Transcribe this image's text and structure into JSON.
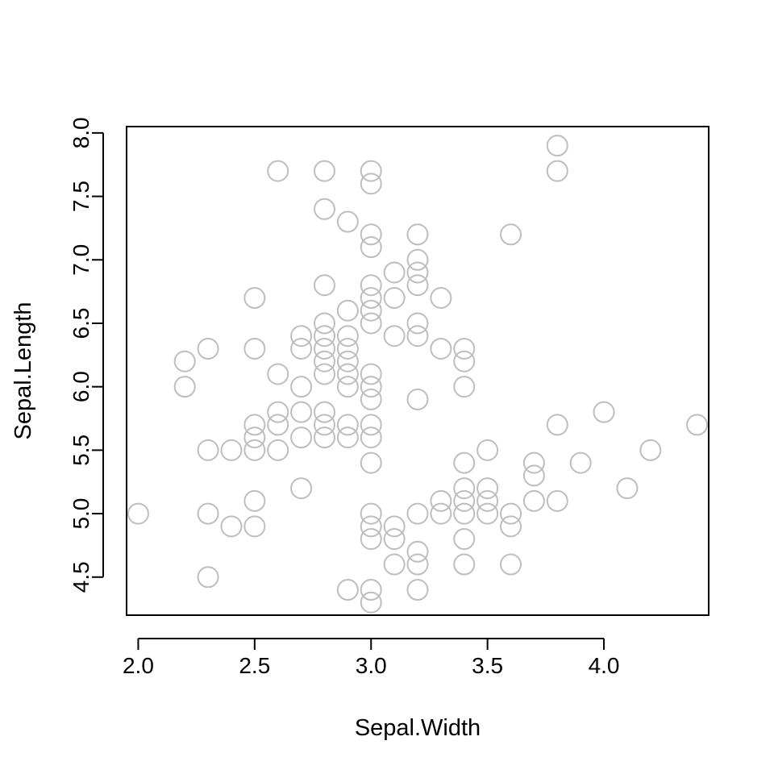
{
  "chart_data": {
    "type": "scatter",
    "title": "",
    "xlabel": "Sepal.Width",
    "ylabel": "Sepal.Length",
    "xlim": [
      1.95,
      4.45
    ],
    "ylim": [
      4.2,
      8.05
    ],
    "x_ticks": [
      2.0,
      2.5,
      3.0,
      3.5,
      4.0
    ],
    "x_tick_labels": [
      "2.0",
      "2.5",
      "3.0",
      "3.5",
      "4.0"
    ],
    "y_ticks": [
      4.5,
      5.0,
      5.5,
      6.0,
      6.5,
      7.0,
      7.5,
      8.0
    ],
    "y_tick_labels": [
      "4.5",
      "5.0",
      "5.5",
      "6.0",
      "6.5",
      "7.0",
      "7.5",
      "8.0"
    ],
    "grid": false,
    "legend": "none",
    "marker": "open-circle",
    "point_color": "#bebebe",
    "points": [
      [
        2.0,
        5.0
      ],
      [
        2.2,
        6.2
      ],
      [
        2.2,
        6.0
      ],
      [
        2.3,
        6.3
      ],
      [
        2.3,
        5.5
      ],
      [
        2.3,
        5.0
      ],
      [
        2.3,
        4.5
      ],
      [
        2.4,
        5.5
      ],
      [
        2.4,
        4.9
      ],
      [
        2.5,
        6.7
      ],
      [
        2.5,
        6.3
      ],
      [
        2.5,
        5.7
      ],
      [
        2.5,
        5.6
      ],
      [
        2.5,
        5.5
      ],
      [
        2.5,
        5.1
      ],
      [
        2.5,
        4.9
      ],
      [
        2.6,
        7.7
      ],
      [
        2.6,
        6.1
      ],
      [
        2.6,
        5.8
      ],
      [
        2.6,
        5.7
      ],
      [
        2.6,
        5.5
      ],
      [
        2.7,
        6.4
      ],
      [
        2.7,
        6.3
      ],
      [
        2.7,
        6.0
      ],
      [
        2.7,
        5.8
      ],
      [
        2.7,
        5.6
      ],
      [
        2.7,
        5.2
      ],
      [
        2.8,
        7.7
      ],
      [
        2.8,
        7.4
      ],
      [
        2.8,
        6.8
      ],
      [
        2.8,
        6.5
      ],
      [
        2.8,
        6.4
      ],
      [
        2.8,
        6.3
      ],
      [
        2.8,
        6.2
      ],
      [
        2.8,
        6.1
      ],
      [
        2.8,
        5.8
      ],
      [
        2.8,
        5.7
      ],
      [
        2.8,
        5.6
      ],
      [
        2.9,
        7.3
      ],
      [
        2.9,
        6.6
      ],
      [
        2.9,
        6.4
      ],
      [
        2.9,
        6.3
      ],
      [
        2.9,
        6.2
      ],
      [
        2.9,
        6.1
      ],
      [
        2.9,
        6.0
      ],
      [
        2.9,
        5.7
      ],
      [
        2.9,
        5.6
      ],
      [
        2.9,
        4.4
      ],
      [
        3.0,
        7.7
      ],
      [
        3.0,
        7.6
      ],
      [
        3.0,
        7.2
      ],
      [
        3.0,
        7.1
      ],
      [
        3.0,
        6.8
      ],
      [
        3.0,
        6.7
      ],
      [
        3.0,
        6.6
      ],
      [
        3.0,
        6.5
      ],
      [
        3.0,
        6.1
      ],
      [
        3.0,
        6.0
      ],
      [
        3.0,
        5.9
      ],
      [
        3.0,
        5.7
      ],
      [
        3.0,
        5.6
      ],
      [
        3.0,
        5.4
      ],
      [
        3.0,
        5.0
      ],
      [
        3.0,
        4.9
      ],
      [
        3.0,
        4.8
      ],
      [
        3.0,
        4.4
      ],
      [
        3.0,
        4.3
      ],
      [
        3.1,
        6.9
      ],
      [
        3.1,
        6.7
      ],
      [
        3.1,
        6.4
      ],
      [
        3.1,
        4.9
      ],
      [
        3.1,
        4.8
      ],
      [
        3.1,
        4.6
      ],
      [
        3.2,
        7.2
      ],
      [
        3.2,
        7.0
      ],
      [
        3.2,
        6.9
      ],
      [
        3.2,
        6.8
      ],
      [
        3.2,
        6.5
      ],
      [
        3.2,
        6.4
      ],
      [
        3.2,
        5.9
      ],
      [
        3.2,
        5.0
      ],
      [
        3.2,
        4.7
      ],
      [
        3.2,
        4.6
      ],
      [
        3.2,
        4.4
      ],
      [
        3.3,
        6.7
      ],
      [
        3.3,
        6.3
      ],
      [
        3.3,
        5.1
      ],
      [
        3.3,
        5.0
      ],
      [
        3.4,
        6.3
      ],
      [
        3.4,
        6.2
      ],
      [
        3.4,
        6.0
      ],
      [
        3.4,
        5.4
      ],
      [
        3.4,
        5.2
      ],
      [
        3.4,
        5.1
      ],
      [
        3.4,
        5.0
      ],
      [
        3.4,
        4.8
      ],
      [
        3.4,
        4.6
      ],
      [
        3.5,
        5.5
      ],
      [
        3.5,
        5.2
      ],
      [
        3.5,
        5.1
      ],
      [
        3.5,
        5.0
      ],
      [
        3.6,
        7.2
      ],
      [
        3.6,
        5.0
      ],
      [
        3.6,
        4.9
      ],
      [
        3.6,
        4.6
      ],
      [
        3.7,
        5.4
      ],
      [
        3.7,
        5.3
      ],
      [
        3.7,
        5.1
      ],
      [
        3.8,
        7.9
      ],
      [
        3.8,
        7.7
      ],
      [
        3.8,
        5.7
      ],
      [
        3.8,
        5.1
      ],
      [
        3.9,
        5.4
      ],
      [
        4.0,
        5.8
      ],
      [
        4.1,
        5.2
      ],
      [
        4.2,
        5.5
      ],
      [
        4.4,
        5.7
      ]
    ]
  }
}
